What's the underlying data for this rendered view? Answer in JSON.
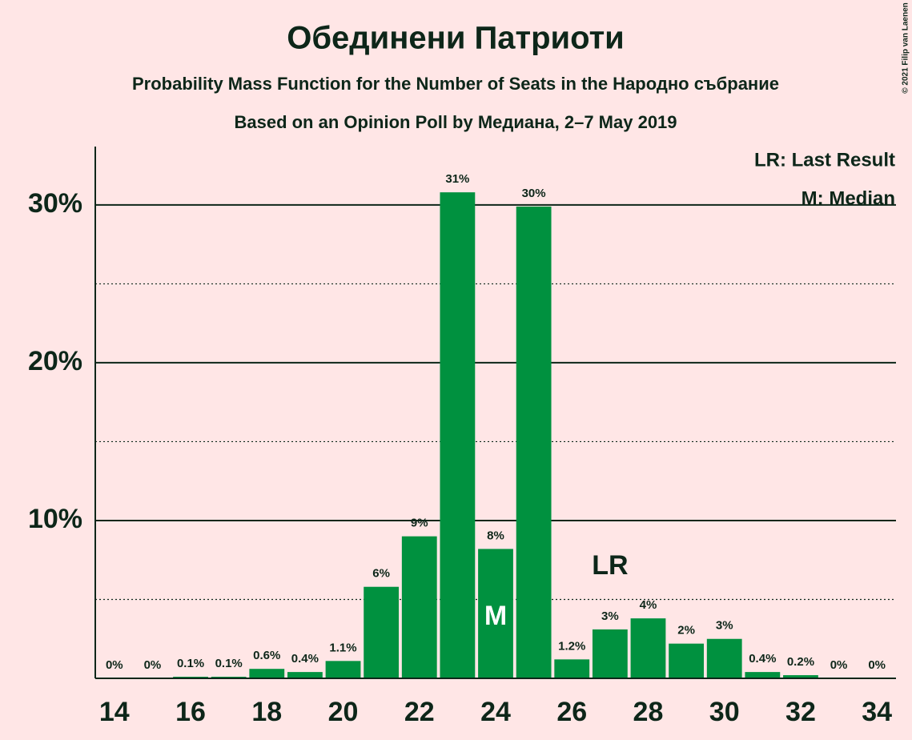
{
  "chart_data": {
    "type": "bar",
    "title": "Обединени Патриоти",
    "subtitle": "Probability Mass Function for the Number of Seats in the Народно събрание",
    "subtitle2": "Based on an Opinion Poll by Медиана, 2–7 May 2019",
    "copyright": "© 2021 Filip van Laenen",
    "legend": [
      "LR: Last Result",
      "M: Median"
    ],
    "x": [
      14,
      15,
      16,
      17,
      18,
      19,
      20,
      21,
      22,
      23,
      24,
      25,
      26,
      27,
      28,
      29,
      30,
      31,
      32,
      33,
      34
    ],
    "values": [
      0,
      0,
      0.1,
      0.1,
      0.6,
      0.4,
      1.1,
      5.8,
      9,
      30.8,
      8.2,
      29.9,
      1.2,
      3.1,
      3.8,
      2.2,
      2.5,
      0.4,
      0.2,
      0,
      0
    ],
    "value_labels": [
      "0%",
      "0%",
      "0.1%",
      "0.1%",
      "0.6%",
      "0.4%",
      "1.1%",
      "6%",
      "9%",
      "31%",
      "8%",
      "30%",
      "1.2%",
      "3%",
      "4%",
      "2%",
      "3%",
      "0.4%",
      "0.2%",
      "0%",
      "0%"
    ],
    "color": "#00913f",
    "xlim": [
      13.5,
      34.5
    ],
    "xticks": [
      14,
      16,
      18,
      20,
      22,
      24,
      26,
      28,
      30,
      32,
      34
    ],
    "ylim": [
      0,
      33.7
    ],
    "yticks": [
      {
        "value": 10,
        "label": "10%"
      },
      {
        "value": 20,
        "label": "20%"
      },
      {
        "value": 30,
        "label": "30%"
      }
    ],
    "minor_grid": [
      5,
      15,
      25
    ],
    "grid": true,
    "annotations": [
      {
        "text": "M",
        "x": 24
      },
      {
        "text": "LR",
        "x": 27
      }
    ]
  }
}
